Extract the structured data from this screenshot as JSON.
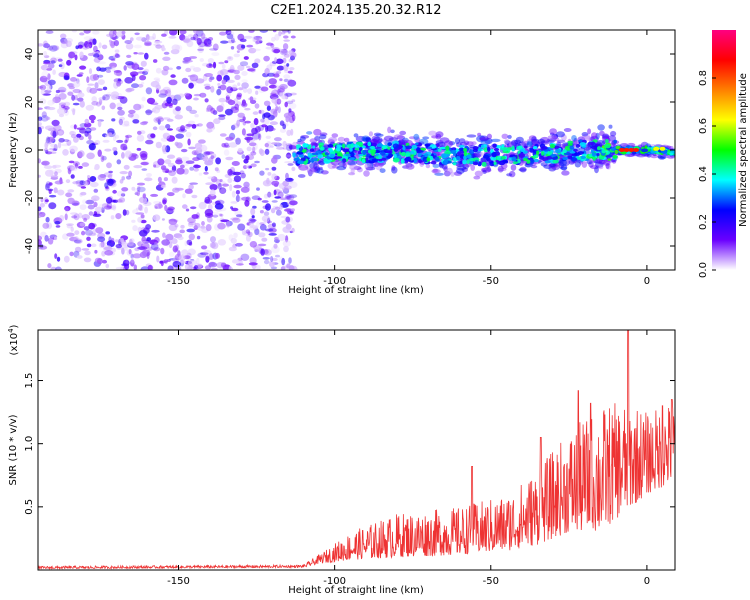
{
  "chart_data": [
    {
      "type": "heatmap",
      "title": "C2E1.2024.135.20.32.R12",
      "xlabel": "Height of straight line (km)",
      "ylabel": "Frequency (Hz)",
      "xlim": [
        -195,
        9
      ],
      "ylim": [
        -50,
        50
      ],
      "x_ticks": [
        -150,
        -100,
        -50,
        0
      ],
      "y_ticks": [
        -40,
        -20,
        0,
        20,
        40
      ],
      "noise_region_x": [
        -195,
        -113
      ],
      "signal_band": [
        {
          "x": -113,
          "f": -2
        },
        {
          "x": -100,
          "f": -1
        },
        {
          "x": -80,
          "f": -1
        },
        {
          "x": -60,
          "f": -2
        },
        {
          "x": -40,
          "f": -2
        },
        {
          "x": -20,
          "f": 0
        },
        {
          "x": -10,
          "f": 0
        },
        {
          "x": 0,
          "f": 0
        },
        {
          "x": 9,
          "f": -1
        }
      ],
      "colorbar": {
        "label": "Normalized spectral amplitude",
        "range": [
          0,
          1
        ],
        "ticks": [
          "0.0",
          "0.2",
          "0.4",
          "0.6",
          "0.8"
        ],
        "colormap": [
          "#ffffff",
          "#6a00ff",
          "#0000ff",
          "#00ffff",
          "#00ff00",
          "#ffff00",
          "#ff8000",
          "#ff0000",
          "#ff0080"
        ]
      },
      "grid": false
    },
    {
      "type": "line",
      "xlabel": "Height of straight line (km)",
      "ylabel": "SNR (10 * v/v)",
      "y_multiplier_label": "(x10",
      "y_multiplier_exp": "4",
      "y_multiplier_close": ")",
      "xlim": [
        -195,
        9
      ],
      "ylim": [
        0,
        1.9
      ],
      "x_ticks": [
        -150,
        -100,
        -50,
        0
      ],
      "y_ticks": [
        "0.5",
        "1.0",
        "1.5"
      ],
      "line_color": "#ee3333",
      "envelope": [
        {
          "x": -195,
          "base": 0.01,
          "peak": 0.03
        },
        {
          "x": -110,
          "base": 0.02,
          "peak": 0.04
        },
        {
          "x": -105,
          "base": 0.05,
          "peak": 0.12
        },
        {
          "x": -95,
          "base": 0.08,
          "peak": 0.3
        },
        {
          "x": -80,
          "base": 0.1,
          "peak": 0.45
        },
        {
          "x": -60,
          "base": 0.12,
          "peak": 0.5
        },
        {
          "x": -45,
          "base": 0.15,
          "peak": 0.6
        },
        {
          "x": -35,
          "base": 0.2,
          "peak": 0.8
        },
        {
          "x": -25,
          "base": 0.3,
          "peak": 1.1
        },
        {
          "x": -15,
          "base": 0.3,
          "peak": 1.3
        },
        {
          "x": -5,
          "base": 0.5,
          "peak": 1.35
        },
        {
          "x": 0,
          "base": 0.6,
          "peak": 1.25
        },
        {
          "x": 9,
          "base": 0.7,
          "peak": 1.35
        }
      ],
      "spikes": [
        {
          "x": -56,
          "y": 0.82
        },
        {
          "x": -34,
          "y": 1.05
        },
        {
          "x": -22,
          "y": 1.42
        },
        {
          "x": -18,
          "y": 1.32
        },
        {
          "x": -6,
          "y": 1.98
        },
        {
          "x": 5,
          "y": 1.3
        },
        {
          "x": 8,
          "y": 1.35
        }
      ],
      "grid": false
    }
  ]
}
